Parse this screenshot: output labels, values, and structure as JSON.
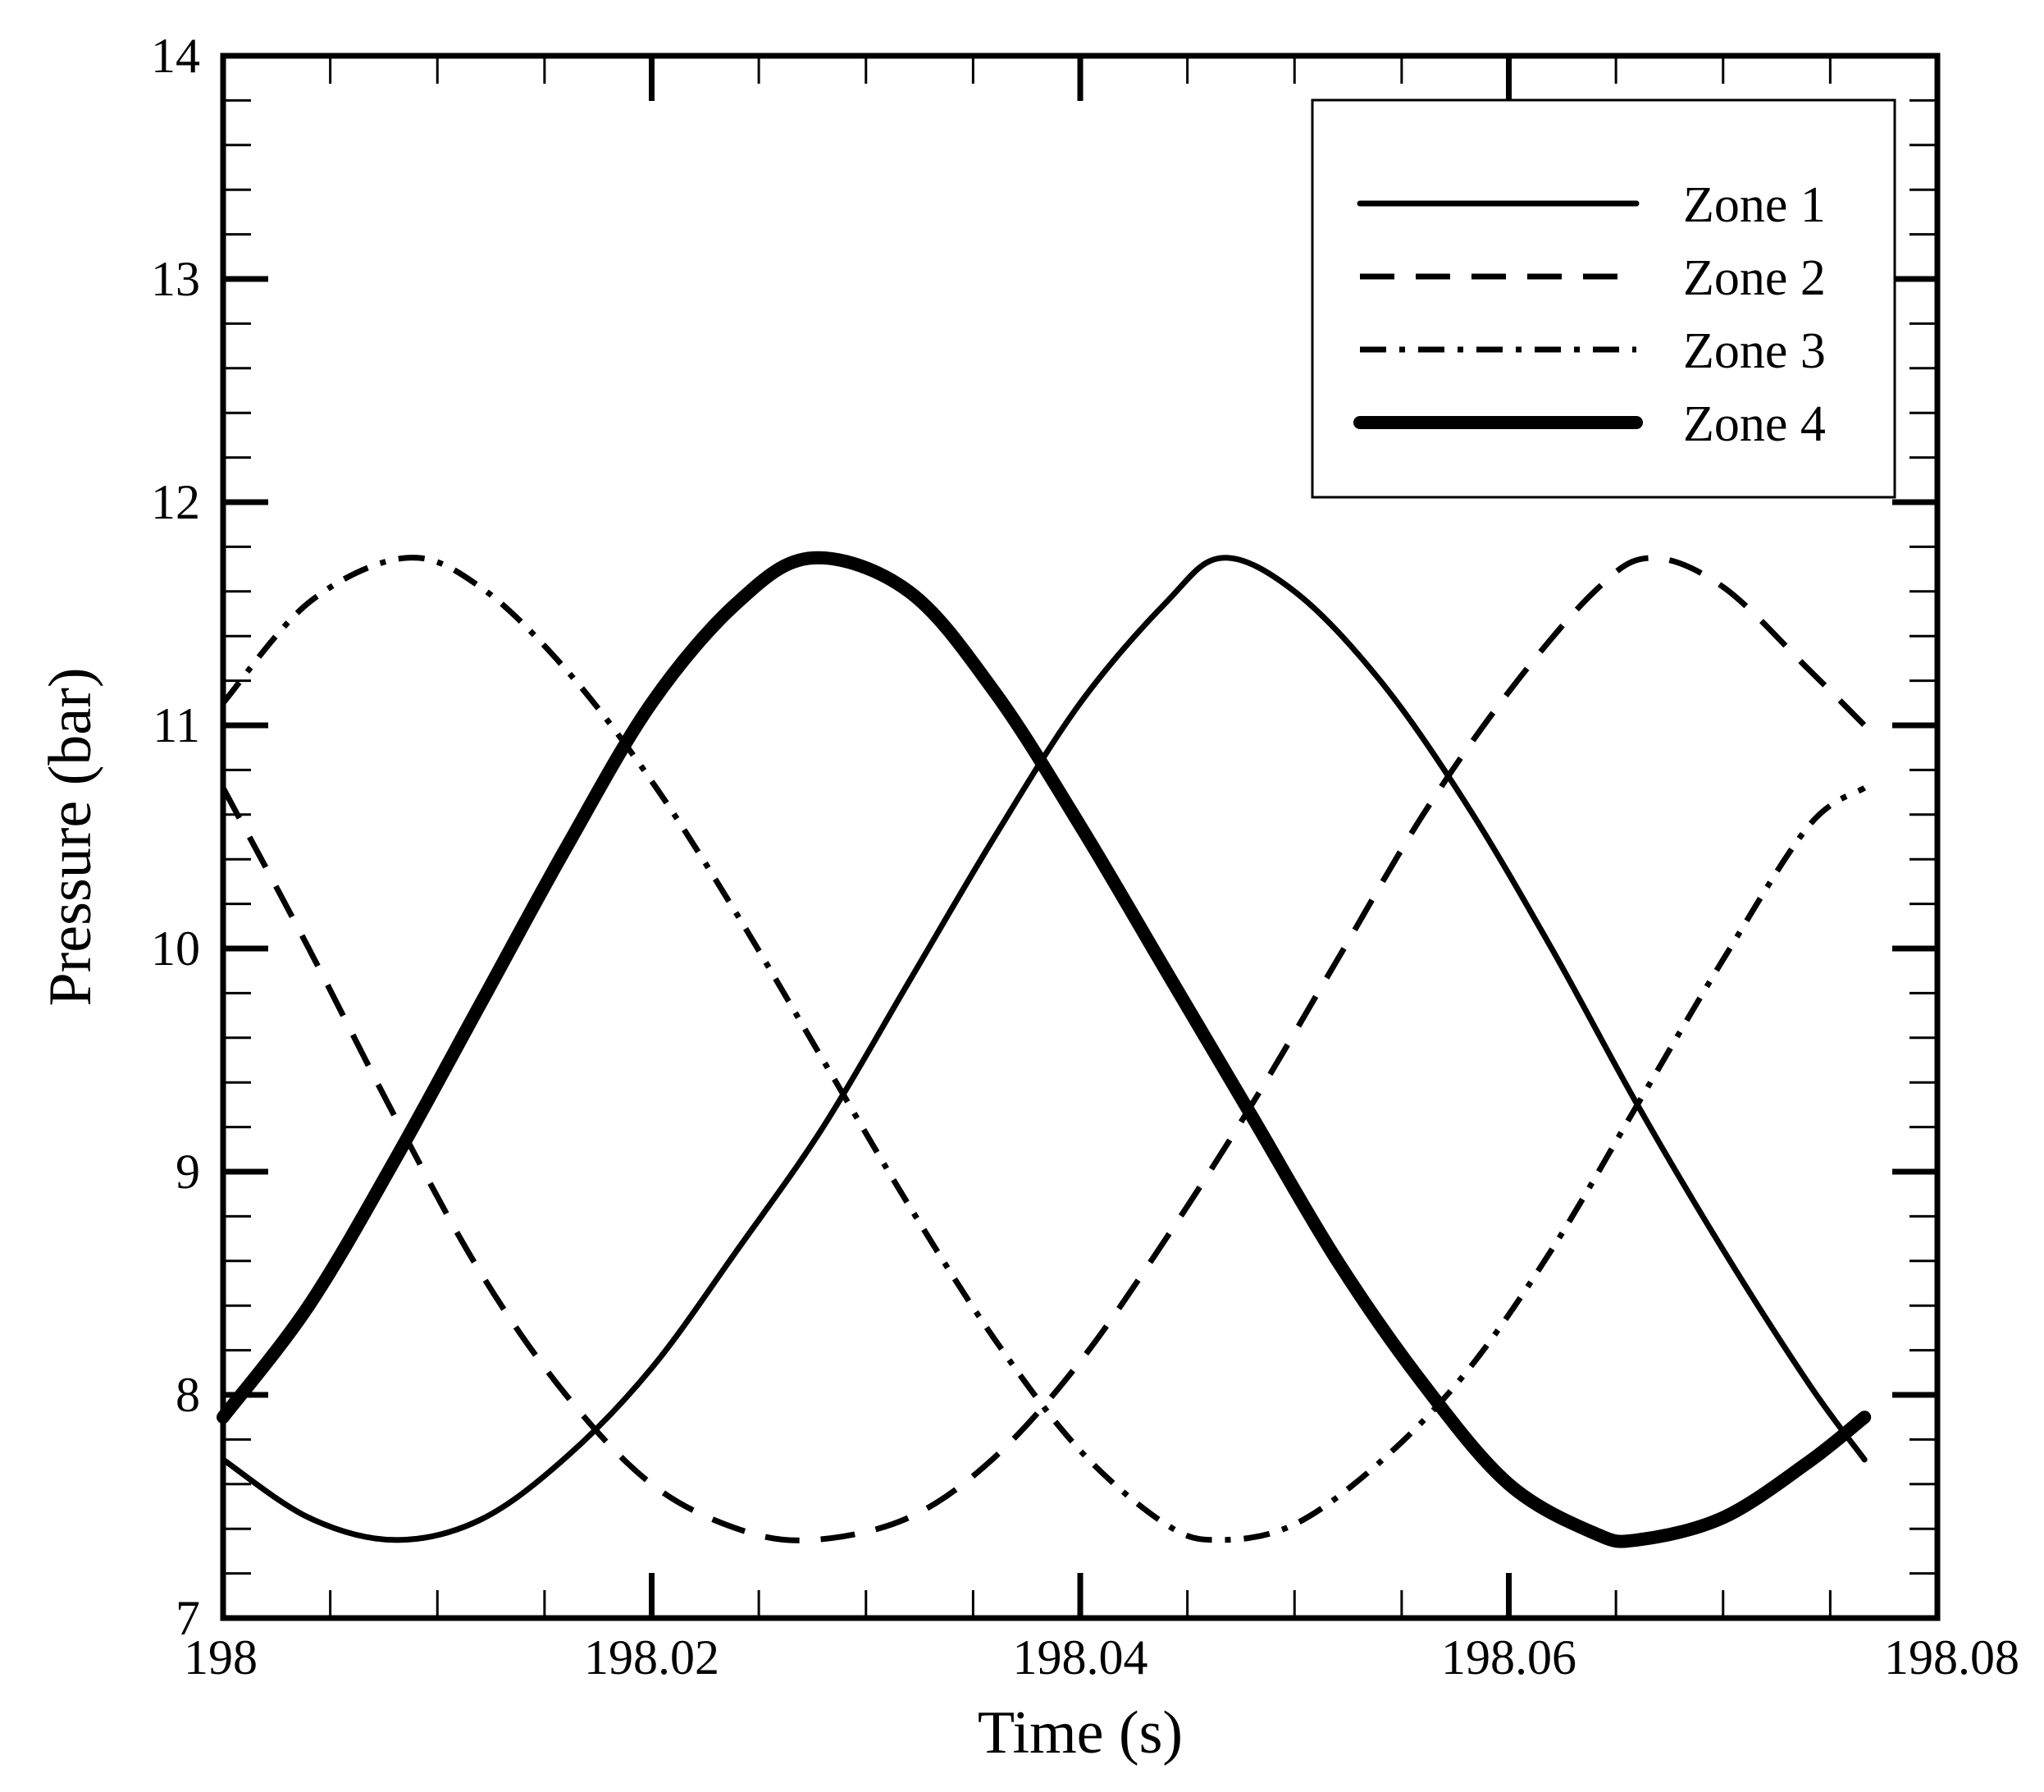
{
  "chart_data": {
    "type": "line",
    "xlabel": "Time (s)",
    "ylabel": "Pressure (bar)",
    "xlim": [
      198,
      198.08
    ],
    "ylim": [
      7,
      14
    ],
    "x_ticks": [
      198,
      198.02,
      198.04,
      198.06,
      198.08
    ],
    "x_tick_labels": [
      "198",
      "198.02",
      "198.04",
      "198.06",
      "198.08"
    ],
    "y_ticks": [
      7,
      8,
      9,
      10,
      11,
      12,
      13,
      14
    ],
    "y_tick_labels": [
      "7",
      "8",
      "9",
      "10",
      "11",
      "12",
      "13",
      "14"
    ],
    "x_minor_step": 0.005,
    "y_minor_step": 0.2,
    "grid": false,
    "legend_position": "top-right",
    "series": [
      {
        "name": "Zone 1",
        "style": "solid",
        "x": [
          198.0,
          198.004,
          198.008,
          198.012,
          198.016,
          198.02,
          198.024,
          198.028,
          198.032,
          198.036,
          198.04,
          198.044,
          198.0466,
          198.05,
          198.054,
          198.058,
          198.062,
          198.066,
          198.07,
          198.074,
          198.0766
        ],
        "y": [
          7.71,
          7.45,
          7.35,
          7.44,
          7.72,
          8.12,
          8.65,
          9.2,
          9.85,
          10.5,
          11.1,
          11.55,
          11.75,
          11.6,
          11.2,
          10.65,
          10.0,
          9.3,
          8.65,
          8.05,
          7.71
        ]
      },
      {
        "name": "Zone 2",
        "style": "dashed",
        "x": [
          198.0,
          198.004,
          198.008,
          198.012,
          198.016,
          198.02,
          198.024,
          198.0275,
          198.032,
          198.036,
          198.04,
          198.044,
          198.048,
          198.052,
          198.056,
          198.06,
          198.064,
          198.0666,
          198.07,
          198.074,
          198.0766
        ],
        "y": [
          10.72,
          10.0,
          9.25,
          8.55,
          8.0,
          7.6,
          7.4,
          7.35,
          7.45,
          7.72,
          8.15,
          8.7,
          9.3,
          9.95,
          10.6,
          11.15,
          11.6,
          11.75,
          11.62,
          11.25,
          11.0
        ]
      },
      {
        "name": "Zone 3",
        "style": "dashdot",
        "x": [
          198.0,
          198.004,
          198.0085,
          198.012,
          198.016,
          198.02,
          198.024,
          198.028,
          198.032,
          198.036,
          198.04,
          198.044,
          198.0465,
          198.05,
          198.054,
          198.058,
          198.062,
          198.066,
          198.07,
          198.074,
          198.0766
        ],
        "y": [
          11.1,
          11.55,
          11.75,
          11.62,
          11.25,
          10.75,
          10.15,
          9.5,
          8.85,
          8.25,
          7.75,
          7.42,
          7.35,
          7.42,
          7.7,
          8.1,
          8.65,
          9.3,
          9.95,
          10.55,
          10.72
        ]
      },
      {
        "name": "Zone 4",
        "style": "thick",
        "x": [
          198.0,
          198.004,
          198.008,
          198.012,
          198.016,
          198.02,
          198.024,
          198.0275,
          198.032,
          198.036,
          198.04,
          198.044,
          198.048,
          198.052,
          198.056,
          198.06,
          198.064,
          198.066,
          198.07,
          198.074,
          198.0766
        ],
        "y": [
          7.9,
          8.4,
          9.05,
          9.75,
          10.45,
          11.1,
          11.55,
          11.75,
          11.6,
          11.15,
          10.55,
          9.9,
          9.25,
          8.6,
          8.05,
          7.6,
          7.38,
          7.35,
          7.45,
          7.7,
          7.9
        ]
      }
    ]
  }
}
